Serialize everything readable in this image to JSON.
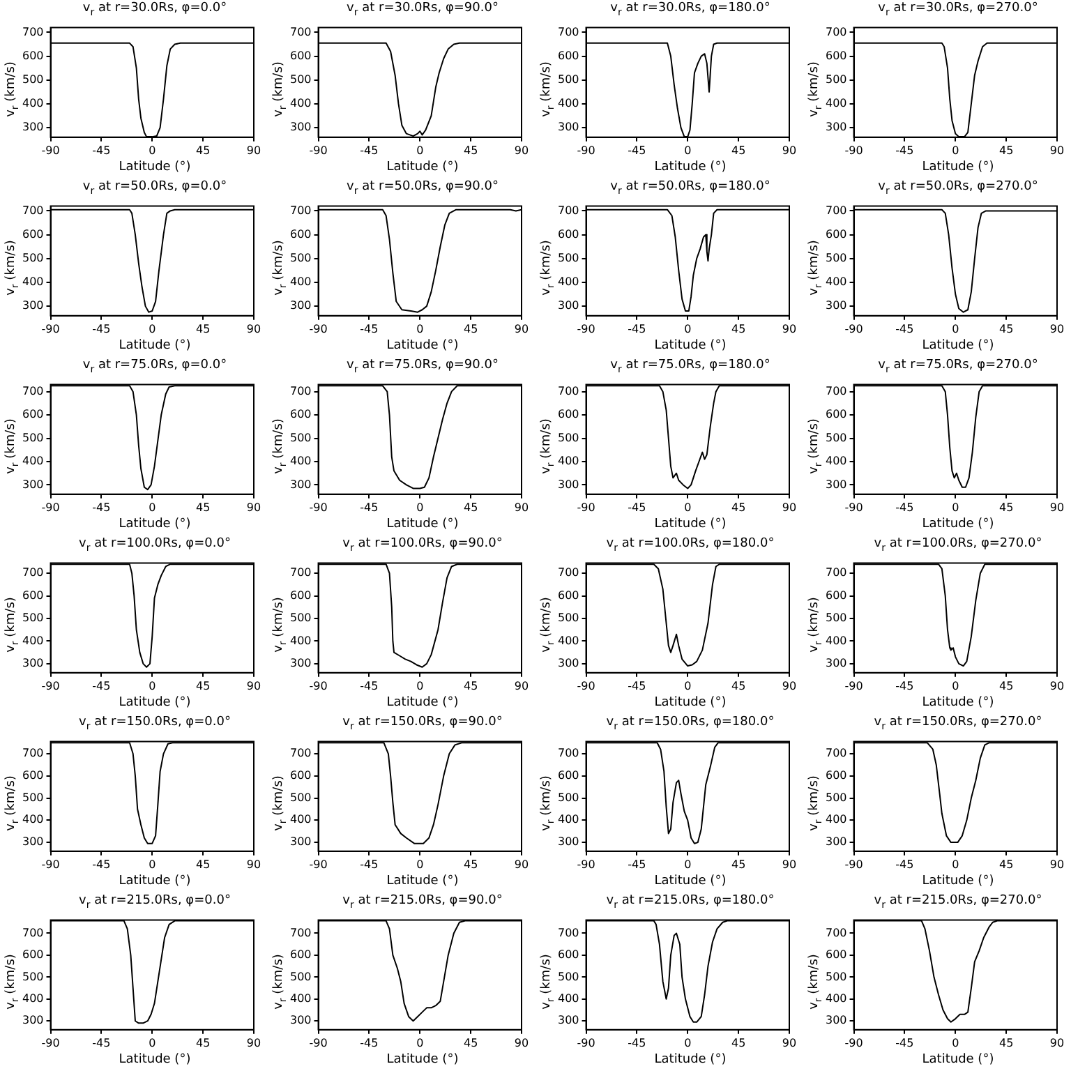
{
  "chart_data": [
    {
      "type": "line",
      "title": "v$_{r}$ at r=30.0Rs, φ=0.0°",
      "xlabel": "Latitude (°)",
      "ylabel": "v$_{r}$ (km/s)",
      "color": "#000000",
      "marker": "none",
      "xlim": [
        -90,
        90
      ],
      "ylim": [
        260,
        720
      ],
      "xticks": [
        -90,
        -45,
        0,
        45,
        90
      ],
      "yticks": [
        300,
        400,
        500,
        600,
        700
      ],
      "x": [
        -90,
        -20,
        -17,
        -14,
        -12,
        -10,
        -7,
        -5,
        0,
        4,
        7,
        10,
        13,
        16,
        20,
        25,
        90
      ],
      "values": [
        655,
        655,
        640,
        550,
        420,
        340,
        280,
        262,
        262,
        265,
        300,
        420,
        560,
        630,
        650,
        655,
        655
      ]
    },
    {
      "type": "line",
      "title": "v$_{r}$ at r=30.0Rs, φ=90.0°",
      "xlabel": "Latitude (°)",
      "ylabel": "v$_{r}$ (km/s)",
      "color": "#000000",
      "marker": "none",
      "xlim": [
        -90,
        90
      ],
      "ylim": [
        260,
        720
      ],
      "xticks": [
        -90,
        -45,
        0,
        45,
        90
      ],
      "yticks": [
        300,
        400,
        500,
        600,
        700
      ],
      "x": [
        -90,
        -30,
        -26,
        -22,
        -19,
        -16,
        -12,
        -6,
        -2,
        0,
        2,
        5,
        10,
        14,
        17,
        21,
        25,
        30,
        35,
        90
      ],
      "values": [
        655,
        655,
        620,
        520,
        400,
        310,
        275,
        265,
        275,
        285,
        270,
        290,
        350,
        470,
        530,
        590,
        630,
        650,
        655,
        655
      ]
    },
    {
      "type": "line",
      "title": "v$_{r}$ at r=30.0Rs, φ=180.0°",
      "xlabel": "Latitude (°)",
      "ylabel": "v$_{r}$ (km/s)",
      "color": "#000000",
      "marker": "none",
      "xlim": [
        -90,
        90
      ],
      "ylim": [
        260,
        720
      ],
      "xticks": [
        -90,
        -45,
        0,
        45,
        90
      ],
      "yticks": [
        300,
        400,
        500,
        600,
        700
      ],
      "x": [
        -90,
        -18,
        -15,
        -12,
        -9,
        -6,
        -3,
        0,
        2,
        4,
        6,
        9,
        12,
        15,
        17,
        19,
        21,
        23,
        26,
        90
      ],
      "values": [
        655,
        655,
        600,
        480,
        380,
        300,
        262,
        262,
        290,
        400,
        530,
        570,
        600,
        610,
        570,
        450,
        600,
        650,
        655,
        655
      ]
    },
    {
      "type": "line",
      "title": "v$_{r}$ at r=30.0Rs, φ=270.0°",
      "xlabel": "Latitude (°)",
      "ylabel": "v$_{r}$ (km/s)",
      "color": "#000000",
      "marker": "none",
      "xlim": [
        -90,
        90
      ],
      "ylim": [
        260,
        720
      ],
      "xticks": [
        -90,
        -45,
        0,
        45,
        90
      ],
      "yticks": [
        300,
        400,
        500,
        600,
        700
      ],
      "x": [
        -90,
        -12,
        -10,
        -7,
        -5,
        -3,
        0,
        3,
        8,
        11,
        14,
        17,
        20,
        24,
        28,
        90
      ],
      "values": [
        655,
        655,
        640,
        550,
        420,
        330,
        275,
        262,
        262,
        280,
        400,
        520,
        580,
        640,
        655,
        655
      ]
    },
    {
      "type": "line",
      "title": "v$_{r}$ at r=50.0Rs, φ=0.0°",
      "xlabel": "Latitude (°)",
      "ylabel": "v$_{r}$ (km/s)",
      "color": "#000000",
      "marker": "none",
      "xlim": [
        -90,
        90
      ],
      "ylim": [
        260,
        720
      ],
      "xticks": [
        -90,
        -45,
        0,
        45,
        90
      ],
      "yticks": [
        300,
        400,
        500,
        600,
        700
      ],
      "x": [
        -90,
        -20,
        -18,
        -15,
        -12,
        -9,
        -6,
        -3,
        0,
        3,
        6,
        10,
        13,
        16,
        20,
        90
      ],
      "values": [
        705,
        705,
        690,
        600,
        480,
        380,
        300,
        275,
        280,
        320,
        450,
        600,
        690,
        700,
        705,
        705
      ]
    },
    {
      "type": "line",
      "title": "v$_{r}$ at r=50.0Rs, φ=90.0°",
      "xlabel": "Latitude (°)",
      "ylabel": "v$_{r}$ (km/s)",
      "color": "#000000",
      "marker": "none",
      "xlim": [
        -90,
        90
      ],
      "ylim": [
        260,
        720
      ],
      "xticks": [
        -90,
        -45,
        0,
        45,
        90
      ],
      "yticks": [
        300,
        400,
        500,
        600,
        700
      ],
      "x": [
        -90,
        -33,
        -30,
        -27,
        -24,
        -21,
        -16,
        -8,
        -2,
        2,
        6,
        10,
        14,
        18,
        22,
        26,
        32,
        80,
        85,
        90
      ],
      "values": [
        705,
        705,
        680,
        580,
        440,
        320,
        285,
        280,
        275,
        285,
        300,
        360,
        450,
        550,
        640,
        690,
        705,
        705,
        700,
        705
      ]
    },
    {
      "type": "line",
      "title": "v$_{r}$ at r=50.0Rs, φ=180.0°",
      "xlabel": "Latitude (°)",
      "ylabel": "v$_{r}$ (km/s)",
      "color": "#000000",
      "marker": "none",
      "xlim": [
        -90,
        90
      ],
      "ylim": [
        260,
        720
      ],
      "xticks": [
        -90,
        -45,
        0,
        45,
        90
      ],
      "yticks": [
        300,
        400,
        500,
        600,
        700
      ],
      "x": [
        -90,
        -18,
        -14,
        -11,
        -8,
        -5,
        -2,
        1,
        3,
        5,
        8,
        11,
        14,
        16,
        17,
        18,
        19,
        21,
        23,
        26,
        90
      ],
      "values": [
        705,
        705,
        680,
        590,
        450,
        330,
        280,
        280,
        340,
        430,
        500,
        540,
        590,
        600,
        530,
        490,
        540,
        600,
        690,
        705,
        705
      ]
    },
    {
      "type": "line",
      "title": "v$_{r}$ at r=50.0Rs, φ=270.0°",
      "xlabel": "Latitude (°)",
      "ylabel": "v$_{r}$ (km/s)",
      "color": "#000000",
      "marker": "none",
      "xlim": [
        -90,
        90
      ],
      "ylim": [
        260,
        720
      ],
      "xticks": [
        -90,
        -45,
        0,
        45,
        90
      ],
      "yticks": [
        300,
        400,
        500,
        600,
        700
      ],
      "x": [
        -90,
        -12,
        -9,
        -6,
        -3,
        0,
        3,
        7,
        11,
        14,
        17,
        20,
        23,
        27,
        90
      ],
      "values": [
        705,
        705,
        690,
        600,
        460,
        350,
        290,
        275,
        285,
        360,
        500,
        630,
        690,
        700,
        700
      ]
    },
    {
      "type": "line",
      "title": "v$_{r}$ at r=75.0Rs, φ=0.0°",
      "xlabel": "Latitude (°)",
      "ylabel": "v$_{r}$ (km/s)",
      "color": "#000000",
      "marker": "none",
      "xlim": [
        -90,
        90
      ],
      "ylim": [
        260,
        730
      ],
      "xticks": [
        -90,
        -45,
        0,
        45,
        90
      ],
      "yticks": [
        300,
        400,
        500,
        600,
        700
      ],
      "x": [
        -90,
        -20,
        -17,
        -14,
        -12,
        -10,
        -7,
        -4,
        -1,
        2,
        5,
        8,
        12,
        15,
        20,
        90
      ],
      "values": [
        725,
        725,
        700,
        600,
        470,
        370,
        290,
        280,
        300,
        380,
        490,
        600,
        690,
        720,
        725,
        725
      ]
    },
    {
      "type": "line",
      "title": "v$_{r}$ at r=75.0Rs, φ=90.0°",
      "xlabel": "Latitude (°)",
      "ylabel": "v$_{r}$ (km/s)",
      "color": "#000000",
      "marker": "none",
      "xlim": [
        -90,
        90
      ],
      "ylim": [
        260,
        730
      ],
      "xticks": [
        -90,
        -45,
        0,
        45,
        90
      ],
      "yticks": [
        300,
        400,
        500,
        600,
        700
      ],
      "x": [
        -90,
        -33,
        -29,
        -27,
        -25,
        -23,
        -18,
        -12,
        -6,
        0,
        4,
        8,
        12,
        16,
        20,
        24,
        28,
        33,
        90
      ],
      "values": [
        725,
        725,
        700,
        600,
        420,
        360,
        320,
        300,
        285,
        285,
        290,
        330,
        420,
        500,
        580,
        650,
        700,
        725,
        725
      ]
    },
    {
      "type": "line",
      "title": "v$_{r}$ at r=75.0Rs, φ=180.0°",
      "xlabel": "Latitude (°)",
      "ylabel": "v$_{r}$ (km/s)",
      "color": "#000000",
      "marker": "none",
      "xlim": [
        -90,
        90
      ],
      "ylim": [
        260,
        730
      ],
      "xticks": [
        -90,
        -45,
        0,
        45,
        90
      ],
      "yticks": [
        300,
        400,
        500,
        600,
        700
      ],
      "x": [
        -90,
        -25,
        -22,
        -19,
        -17,
        -15,
        -13,
        -10,
        -8,
        -4,
        0,
        3,
        7,
        10,
        13,
        15,
        17,
        20,
        23,
        25,
        28,
        90
      ],
      "values": [
        725,
        725,
        700,
        620,
        500,
        380,
        330,
        350,
        320,
        300,
        285,
        300,
        360,
        400,
        440,
        410,
        430,
        550,
        650,
        700,
        725,
        725
      ]
    },
    {
      "type": "line",
      "title": "v$_{r}$ at r=75.0Rs, φ=270.0°",
      "xlabel": "Latitude (°)",
      "ylabel": "v$_{r}$ (km/s)",
      "color": "#000000",
      "marker": "none",
      "xlim": [
        -90,
        90
      ],
      "ylim": [
        260,
        730
      ],
      "xticks": [
        -90,
        -45,
        0,
        45,
        90
      ],
      "yticks": [
        300,
        400,
        500,
        600,
        700
      ],
      "x": [
        -90,
        -12,
        -9,
        -7,
        -5,
        -3,
        -1,
        1,
        3,
        6,
        9,
        12,
        15,
        18,
        21,
        24,
        90
      ],
      "values": [
        725,
        725,
        700,
        600,
        460,
        360,
        330,
        350,
        320,
        290,
        290,
        330,
        440,
        590,
        700,
        725,
        725
      ]
    },
    {
      "type": "line",
      "title": "v$_{r}$ at r=100.0Rs, φ=0.0°",
      "xlabel": "Latitude (°)",
      "ylabel": "v$_{r}$ (km/s)",
      "color": "#000000",
      "marker": "none",
      "xlim": [
        -90,
        90
      ],
      "ylim": [
        260,
        745
      ],
      "xticks": [
        -90,
        -45,
        0,
        45,
        90
      ],
      "yticks": [
        300,
        400,
        500,
        600,
        700
      ],
      "x": [
        -90,
        -20,
        -18,
        -16,
        -14,
        -11,
        -8,
        -5,
        -2,
        0,
        2,
        5,
        8,
        12,
        16,
        90
      ],
      "values": [
        740,
        740,
        700,
        600,
        450,
        350,
        300,
        285,
        300,
        420,
        590,
        650,
        690,
        730,
        740,
        740
      ]
    },
    {
      "type": "line",
      "title": "v$_{r}$ at r=100.0Rs, φ=90.0°",
      "xlabel": "Latitude (°)",
      "ylabel": "v$_{r}$ (km/s)",
      "color": "#000000",
      "marker": "none",
      "xlim": [
        -90,
        90
      ],
      "ylim": [
        260,
        745
      ],
      "xticks": [
        -90,
        -45,
        0,
        45,
        90
      ],
      "yticks": [
        300,
        400,
        500,
        600,
        700
      ],
      "x": [
        -90,
        -30,
        -27,
        -25,
        -24,
        -23,
        -18,
        -13,
        -8,
        -3,
        2,
        6,
        10,
        16,
        20,
        24,
        28,
        33,
        90
      ],
      "values": [
        740,
        740,
        700,
        550,
        400,
        350,
        335,
        320,
        310,
        295,
        285,
        300,
        340,
        450,
        570,
        680,
        730,
        740,
        740
      ]
    },
    {
      "type": "line",
      "title": "v$_{r}$ at r=100.0Rs, φ=180.0°",
      "xlabel": "Latitude (°)",
      "ylabel": "v$_{r}$ (km/s)",
      "color": "#000000",
      "marker": "none",
      "xlim": [
        -90,
        90
      ],
      "ylim": [
        260,
        745
      ],
      "xticks": [
        -90,
        -45,
        0,
        45,
        90
      ],
      "yticks": [
        300,
        400,
        500,
        600,
        700
      ],
      "x": [
        -90,
        -30,
        -26,
        -22,
        -19,
        -17,
        -15,
        -13,
        -10,
        -8,
        -5,
        0,
        4,
        8,
        13,
        18,
        22,
        25,
        28,
        90
      ],
      "values": [
        740,
        740,
        720,
        630,
        480,
        380,
        350,
        380,
        430,
        380,
        320,
        290,
        295,
        310,
        360,
        480,
        650,
        730,
        740,
        740
      ]
    },
    {
      "type": "line",
      "title": "v$_{r}$ at r=100.0Rs, φ=270.0°",
      "xlabel": "Latitude (°)",
      "ylabel": "v$_{r}$ (km/s)",
      "color": "#000000",
      "marker": "none",
      "xlim": [
        -90,
        90
      ],
      "ylim": [
        260,
        745
      ],
      "xticks": [
        -90,
        -45,
        0,
        45,
        90
      ],
      "yticks": [
        300,
        400,
        500,
        600,
        700
      ],
      "x": [
        -90,
        -15,
        -12,
        -9,
        -7,
        -5,
        -4,
        -2,
        0,
        3,
        7,
        10,
        14,
        18,
        22,
        26,
        90
      ],
      "values": [
        740,
        740,
        720,
        600,
        450,
        370,
        360,
        370,
        330,
        300,
        290,
        310,
        420,
        580,
        700,
        740,
        740
      ]
    },
    {
      "type": "line",
      "title": "v$_{r}$ at r=150.0Rs, φ=0.0°",
      "xlabel": "Latitude (°)",
      "ylabel": "v$_{r}$ (km/s)",
      "color": "#000000",
      "marker": "none",
      "xlim": [
        -90,
        90
      ],
      "ylim": [
        260,
        755
      ],
      "xticks": [
        -90,
        -45,
        0,
        45,
        90
      ],
      "yticks": [
        300,
        400,
        500,
        600,
        700
      ],
      "x": [
        -90,
        -20,
        -17,
        -15,
        -13,
        -10,
        -7,
        -4,
        0,
        3,
        5,
        7,
        10,
        14,
        18,
        90
      ],
      "values": [
        750,
        750,
        700,
        600,
        450,
        380,
        320,
        295,
        295,
        330,
        470,
        620,
        700,
        745,
        750,
        750
      ]
    },
    {
      "type": "line",
      "title": "v$_{r}$ at r=150.0Rs, φ=90.0°",
      "xlabel": "Latitude (°)",
      "ylabel": "v$_{r}$ (km/s)",
      "color": "#000000",
      "marker": "none",
      "xlim": [
        -90,
        90
      ],
      "ylim": [
        260,
        755
      ],
      "xticks": [
        -90,
        -45,
        0,
        45,
        90
      ],
      "yticks": [
        300,
        400,
        500,
        600,
        700
      ],
      "x": [
        -90,
        -32,
        -28,
        -26,
        -24,
        -22,
        -17,
        -12,
        -5,
        3,
        8,
        12,
        16,
        21,
        26,
        31,
        37,
        90
      ],
      "values": [
        750,
        750,
        700,
        600,
        480,
        380,
        340,
        320,
        295,
        295,
        320,
        380,
        470,
        600,
        700,
        740,
        750,
        750
      ]
    },
    {
      "type": "line",
      "title": "v$_{r}$ at r=150.0Rs, φ=180.0°",
      "xlabel": "Latitude (°)",
      "ylabel": "v$_{r}$ (km/s)",
      "color": "#000000",
      "marker": "none",
      "xlim": [
        -90,
        90
      ],
      "ylim": [
        260,
        755
      ],
      "xticks": [
        -90,
        -45,
        0,
        45,
        90
      ],
      "yticks": [
        300,
        400,
        500,
        600,
        700
      ],
      "x": [
        -90,
        -27,
        -24,
        -21,
        -19,
        -17,
        -15,
        -13,
        -10,
        -8,
        -6,
        -3,
        0,
        3,
        6,
        9,
        12,
        16,
        20,
        24,
        27,
        90
      ],
      "values": [
        750,
        750,
        720,
        620,
        460,
        340,
        360,
        480,
        570,
        580,
        520,
        440,
        400,
        320,
        295,
        300,
        360,
        560,
        640,
        730,
        750,
        750
      ]
    },
    {
      "type": "line",
      "title": "v$_{r}$ at r=150.0Rs, φ=270.0°",
      "xlabel": "Latitude (°)",
      "ylabel": "v$_{r}$ (km/s)",
      "color": "#000000",
      "marker": "none",
      "xlim": [
        -90,
        90
      ],
      "ylim": [
        260,
        755
      ],
      "xticks": [
        -90,
        -45,
        0,
        45,
        90
      ],
      "yticks": [
        300,
        400,
        500,
        600,
        700
      ],
      "x": [
        -90,
        -25,
        -20,
        -17,
        -14,
        -12,
        -8,
        -4,
        2,
        6,
        10,
        14,
        18,
        22,
        26,
        30,
        90
      ],
      "values": [
        750,
        750,
        720,
        650,
        520,
        430,
        330,
        300,
        300,
        330,
        400,
        500,
        580,
        680,
        740,
        750,
        750
      ]
    },
    {
      "type": "line",
      "title": "v$_{r}$ at r=215.0Rs, φ=0.0°",
      "xlabel": "Latitude (°)",
      "ylabel": "v$_{r}$ (km/s)",
      "color": "#000000",
      "marker": "none",
      "xlim": [
        -90,
        90
      ],
      "ylim": [
        260,
        760
      ],
      "xticks": [
        -90,
        -45,
        0,
        45,
        90
      ],
      "yticks": [
        300,
        400,
        500,
        600,
        700
      ],
      "x": [
        -90,
        -25,
        -22,
        -19,
        -17,
        -15,
        -12,
        -8,
        -4,
        -1,
        2,
        5,
        8,
        11,
        15,
        20,
        90
      ],
      "values": [
        757,
        757,
        720,
        600,
        450,
        300,
        290,
        290,
        300,
        330,
        380,
        480,
        580,
        680,
        740,
        757,
        757
      ]
    },
    {
      "type": "line",
      "title": "v$_{r}$ at r=215.0Rs, φ=90.0°",
      "xlabel": "Latitude (°)",
      "ylabel": "v$_{r}$ (km/s)",
      "color": "#000000",
      "marker": "none",
      "xlim": [
        -90,
        90
      ],
      "ylim": [
        260,
        760
      ],
      "xticks": [
        -90,
        -45,
        0,
        45,
        90
      ],
      "yticks": [
        300,
        400,
        500,
        600,
        700
      ],
      "x": [
        -90,
        -30,
        -27,
        -24,
        -20,
        -17,
        -14,
        -10,
        -6,
        -2,
        2,
        6,
        10,
        14,
        18,
        21,
        25,
        30,
        35,
        40,
        90
      ],
      "values": [
        757,
        757,
        720,
        600,
        540,
        480,
        380,
        320,
        300,
        320,
        340,
        360,
        360,
        370,
        390,
        480,
        600,
        700,
        750,
        757,
        757
      ]
    },
    {
      "type": "line",
      "title": "v$_{r}$ at r=215.0Rs, φ=180.0°",
      "xlabel": "Latitude (°)",
      "ylabel": "v$_{r}$ (km/s)",
      "color": "#000000",
      "marker": "none",
      "xlim": [
        -90,
        90
      ],
      "ylim": [
        260,
        760
      ],
      "xticks": [
        -90,
        -45,
        0,
        45,
        90
      ],
      "yticks": [
        300,
        400,
        500,
        600,
        700
      ],
      "x": [
        -90,
        -30,
        -28,
        -25,
        -22,
        -19,
        -17,
        -15,
        -12,
        -10,
        -7,
        -5,
        -2,
        2,
        5,
        8,
        12,
        15,
        18,
        22,
        26,
        31,
        35,
        90
      ],
      "values": [
        757,
        757,
        740,
        650,
        480,
        400,
        450,
        600,
        690,
        700,
        650,
        500,
        400,
        320,
        295,
        295,
        320,
        420,
        550,
        660,
        720,
        750,
        757,
        757
      ]
    },
    {
      "type": "line",
      "title": "v$_{r}$ at r=215.0Rs, φ=270.0°",
      "xlabel": "Latitude (°)",
      "ylabel": "v$_{r}$ (km/s)",
      "color": "#000000",
      "marker": "none",
      "xlim": [
        -90,
        90
      ],
      "ylim": [
        260,
        760
      ],
      "xticks": [
        -90,
        -45,
        0,
        45,
        90
      ],
      "yticks": [
        300,
        400,
        500,
        600,
        700
      ],
      "x": [
        -90,
        -30,
        -27,
        -23,
        -19,
        -15,
        -11,
        -7,
        -4,
        0,
        4,
        8,
        11,
        14,
        17,
        21,
        25,
        30,
        33,
        37,
        90
      ],
      "values": [
        757,
        757,
        720,
        620,
        500,
        420,
        350,
        310,
        295,
        310,
        330,
        330,
        340,
        450,
        570,
        620,
        680,
        730,
        750,
        757,
        757
      ]
    }
  ]
}
